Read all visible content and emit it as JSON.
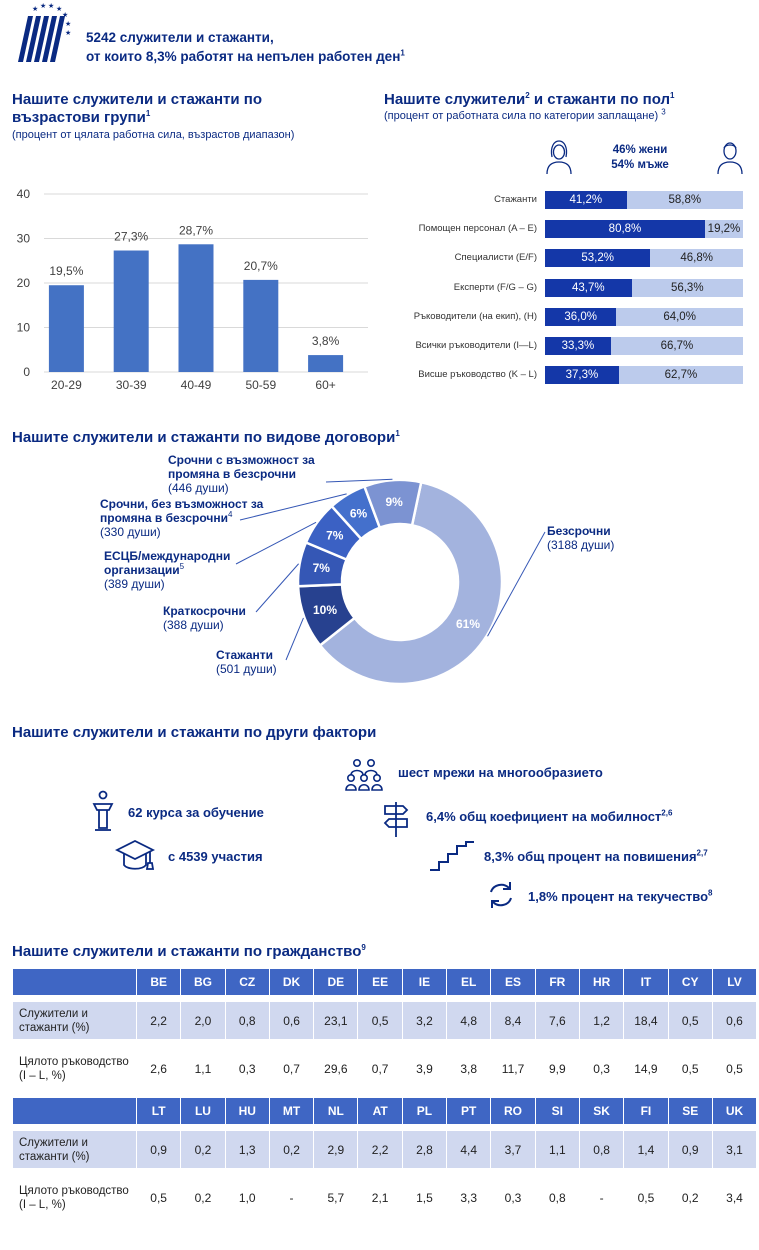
{
  "header": {
    "line1": "5242 служители и стажанти,",
    "line2": "от които 8,3% работят на непълен работен ден",
    "line2_sup": "1"
  },
  "age": {
    "title": "Нашите служители и стажанти по възрастови групи",
    "title_sup": "1",
    "subtitle": "(процент от цялата работна сила, възрастов диапазон)"
  },
  "gender": {
    "title": "Нашите служители",
    "title_sup1": "2",
    "title_rest": " и стажанти по пол",
    "title_sup2": "1",
    "subtitle": "(процент от работната сила по категории заплащане)",
    "subtitle_sup": "3",
    "women_total": "46% жени",
    "men_total": "54% мъже"
  },
  "contracts": {
    "title": "Нашите служители и стажанти по видове договори",
    "title_sup": "1"
  },
  "factors": {
    "title": "Нашите служители и стажанти по други фактори",
    "items": [
      {
        "icon": "diversity-people-icon",
        "text": "шест мрежи на многообразието",
        "sup": ""
      },
      {
        "icon": "lectern-icon",
        "text": "62 курса за обучение",
        "sup": ""
      },
      {
        "icon": "signpost-icon",
        "text": "6,4% общ коефициент на мобилност",
        "sup": "2,6"
      },
      {
        "icon": "graduation-cap-icon",
        "text": "с 4539 участия",
        "sup": ""
      },
      {
        "icon": "stairs-icon",
        "text": "8,3% общ процент на повишения",
        "sup": "2,7"
      },
      {
        "icon": "refresh-arrows-icon",
        "text": "1,8% процент на текучество",
        "sup": "8"
      }
    ]
  },
  "nationality": {
    "title": "Нашите служители и стажанти по гражданство",
    "title_sup": "9",
    "row_label_1": "Служители и стажанти (%)",
    "row_label_2": "Цялото ръководство (I – L, %)",
    "blocks": [
      {
        "countries": [
          "BE",
          "BG",
          "CZ",
          "DK",
          "DE",
          "EE",
          "IE",
          "EL",
          "ES",
          "FR",
          "HR",
          "IT",
          "CY",
          "LV"
        ],
        "staff": [
          "2,2",
          "2,0",
          "0,8",
          "0,6",
          "23,1",
          "0,5",
          "3,2",
          "4,8",
          "8,4",
          "7,6",
          "1,2",
          "18,4",
          "0,5",
          "0,6"
        ],
        "management": [
          "2,6",
          "1,1",
          "0,3",
          "0,7",
          "29,6",
          "0,7",
          "3,9",
          "3,8",
          "11,7",
          "9,9",
          "0,3",
          "14,9",
          "0,5",
          "0,5"
        ]
      },
      {
        "countries": [
          "LT",
          "LU",
          "HU",
          "MT",
          "NL",
          "AT",
          "PL",
          "PT",
          "RO",
          "SI",
          "SK",
          "FI",
          "SE",
          "UK"
        ],
        "staff": [
          "0,9",
          "0,2",
          "1,3",
          "0,2",
          "2,9",
          "2,2",
          "2,8",
          "4,4",
          "3,7",
          "1,1",
          "0,8",
          "1,4",
          "0,9",
          "3,1"
        ],
        "management": [
          "0,5",
          "0,2",
          "1,0",
          "-",
          "5,7",
          "2,1",
          "1,5",
          "3,3",
          "0,3",
          "0,8",
          "-",
          "0,5",
          "0,2",
          "3,4"
        ]
      }
    ]
  },
  "chart_data": [
    {
      "type": "bar",
      "categories": [
        "20-29",
        "30-39",
        "40-49",
        "50-59",
        "60+"
      ],
      "values": [
        19.5,
        27.3,
        28.7,
        20.7,
        3.8
      ],
      "value_labels": [
        "19,5%",
        "27,3%",
        "28,7%",
        "20,7%",
        "3,8%"
      ],
      "yticks": [
        "0",
        "10",
        "20",
        "30",
        "40"
      ],
      "ylim": [
        0,
        40
      ],
      "color": "#4472c4"
    },
    {
      "type": "bar",
      "orientation": "horizontal-stacked",
      "categories": [
        "Стажанти",
        "Помощен персонал (A – E)",
        "Специалисти (E/F)",
        "Експерти (F/G – G)",
        "Ръководители (на екип), (H)",
        "Всички ръководители (I—L)",
        "Висше ръководство (K – L)"
      ],
      "series": [
        {
          "values": [
            41.2,
            80.8,
            53.2,
            43.7,
            36.0,
            33.3,
            37.3
          ],
          "labels": [
            "41,2%",
            "80,8%",
            "53,2%",
            "43,7%",
            "36,0%",
            "33,3%",
            "37,3%"
          ],
          "color": "#1437a8"
        },
        {
          "values": [
            58.8,
            19.2,
            46.8,
            56.3,
            64.0,
            66.7,
            62.7
          ],
          "labels": [
            "58,8%",
            "19,2%",
            "46,8%",
            "56,3%",
            "64,0%",
            "66,7%",
            "62,7%"
          ],
          "color": "#bccbec"
        }
      ]
    },
    {
      "type": "pie",
      "variant": "donut",
      "slices": [
        {
          "name": "Безсрочни",
          "count": "(3188 души)",
          "value": 61,
          "label": "61%",
          "color": "#a3b3de"
        },
        {
          "name": "Стажанти",
          "count": "(501 души)",
          "value": 10,
          "label": "10%",
          "color": "#27418f"
        },
        {
          "name": "Краткосрочни",
          "count": "(388 души)",
          "value": 7,
          "label": "7%",
          "color": "#3557b5"
        },
        {
          "name": "ЕСЦБ/международни организации",
          "name_sup": "5",
          "count": "(389 души)",
          "value": 7,
          "label": "7%",
          "color": "#3b61c4"
        },
        {
          "name": "Срочни, без възможност за промяна в безсрочни",
          "name_sup": "4",
          "count": "(330 души)",
          "value": 6,
          "label": "6%",
          "color": "#4470cc"
        },
        {
          "name": "Срочни с възможност за промяна в безсрочни",
          "count": "(446 души)",
          "value": 9,
          "label": "9%",
          "color": "#7c93d2"
        }
      ]
    }
  ]
}
